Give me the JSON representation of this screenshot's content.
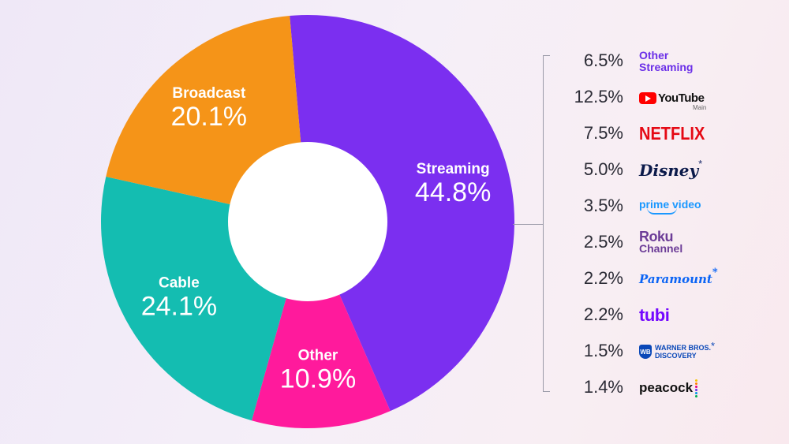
{
  "colors": {
    "streaming": "#7b2ff0",
    "other": "#ff1a9c",
    "cable": "#14bdb1",
    "broadcast": "#f59418",
    "hole": "#ffffff"
  },
  "chart_data": {
    "type": "pie",
    "title": "",
    "slices": [
      {
        "name": "Streaming",
        "value": 44.8,
        "label": "44.8%",
        "color": "#7b2ff0"
      },
      {
        "name": "Other",
        "value": 10.9,
        "label": "10.9%",
        "color": "#ff1a9c"
      },
      {
        "name": "Cable",
        "value": 24.1,
        "label": "24.1%",
        "color": "#14bdb1"
      },
      {
        "name": "Broadcast",
        "value": 20.1,
        "label": "20.1%",
        "color": "#f59418"
      }
    ],
    "streaming_breakdown": [
      {
        "brand": "Other Streaming",
        "value": 6.5,
        "label": "6.5%"
      },
      {
        "brand": "YouTube Main",
        "value": 12.5,
        "label": "12.5%"
      },
      {
        "brand": "Netflix",
        "value": 7.5,
        "label": "7.5%"
      },
      {
        "brand": "Disney*",
        "value": 5.0,
        "label": "5.0%"
      },
      {
        "brand": "prime video",
        "value": 3.5,
        "label": "3.5%"
      },
      {
        "brand": "Roku Channel",
        "value": 2.5,
        "label": "2.5%"
      },
      {
        "brand": "Paramount*",
        "value": 2.2,
        "label": "2.2%"
      },
      {
        "brand": "tubi",
        "value": 2.2,
        "label": "2.2%"
      },
      {
        "brand": "Warner Bros. Discovery*",
        "value": 1.5,
        "label": "1.5%"
      },
      {
        "brand": "peacock",
        "value": 1.4,
        "label": "1.4%"
      }
    ]
  },
  "brands": {
    "other_line1": "Other",
    "other_line2": "Streaming",
    "youtube_word": "YouTube",
    "youtube_sub": "Main",
    "netflix": "NETFLIX",
    "disney": "Disney",
    "prime": "prime video",
    "roku_word": "Roku",
    "roku_sub": "Channel",
    "paramount": "Paramount",
    "tubi": "tubi",
    "wbd_shield": "WB",
    "wbd_line1": "WARNER BROS.",
    "wbd_line2": "DISCOVERY",
    "peacock": "peacock",
    "asterisk": "*",
    "peacock_dot_colors": [
      "#f5c400",
      "#ff7a00",
      "#e6007e",
      "#6a2ee8",
      "#0096e6",
      "#00b050"
    ]
  }
}
